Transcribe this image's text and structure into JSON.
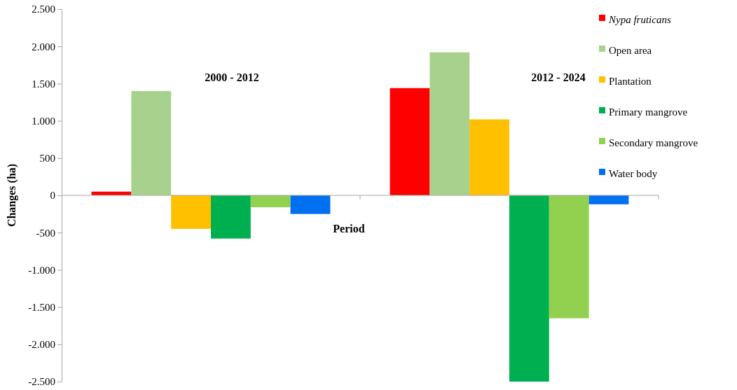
{
  "chart_data": {
    "type": "bar",
    "xlabel": "Period",
    "ylabel": "Changes (ha)",
    "categories": [
      "2000 - 2012",
      "2012 - 2024"
    ],
    "series": [
      {
        "name": "Nypa fruticans",
        "color": "#ff0000",
        "values": [
          50,
          1440
        ]
      },
      {
        "name": "Open area",
        "color": "#a9d18e",
        "values": [
          1400,
          1920
        ]
      },
      {
        "name": "Plantation",
        "color": "#ffc000",
        "values": [
          -450,
          1020
        ]
      },
      {
        "name": "Primary mangrove",
        "color": "#00b050",
        "values": [
          -580,
          -2500
        ]
      },
      {
        "name": "Secondary mangrove",
        "color": "#92d050",
        "values": [
          -160,
          -1650
        ]
      },
      {
        "name": "Water body",
        "color": "#0070f0",
        "values": [
          -250,
          -120
        ]
      }
    ],
    "ylim": [
      -2500,
      2500
    ],
    "yticks": [
      {
        "value": -2500,
        "label": "-2.500"
      },
      {
        "value": -2000,
        "label": "-2.000"
      },
      {
        "value": -1500,
        "label": "-1.500"
      },
      {
        "value": -1000,
        "label": "-1.000"
      },
      {
        "value": -500,
        "label": "-500"
      },
      0,
      500,
      {
        "value": 1000,
        "label": "1.000"
      },
      {
        "value": 1500,
        "label": "1.500"
      },
      {
        "value": 2000,
        "label": "2.000"
      },
      {
        "value": 2500,
        "label": "2.500"
      }
    ],
    "legend": "top right"
  }
}
